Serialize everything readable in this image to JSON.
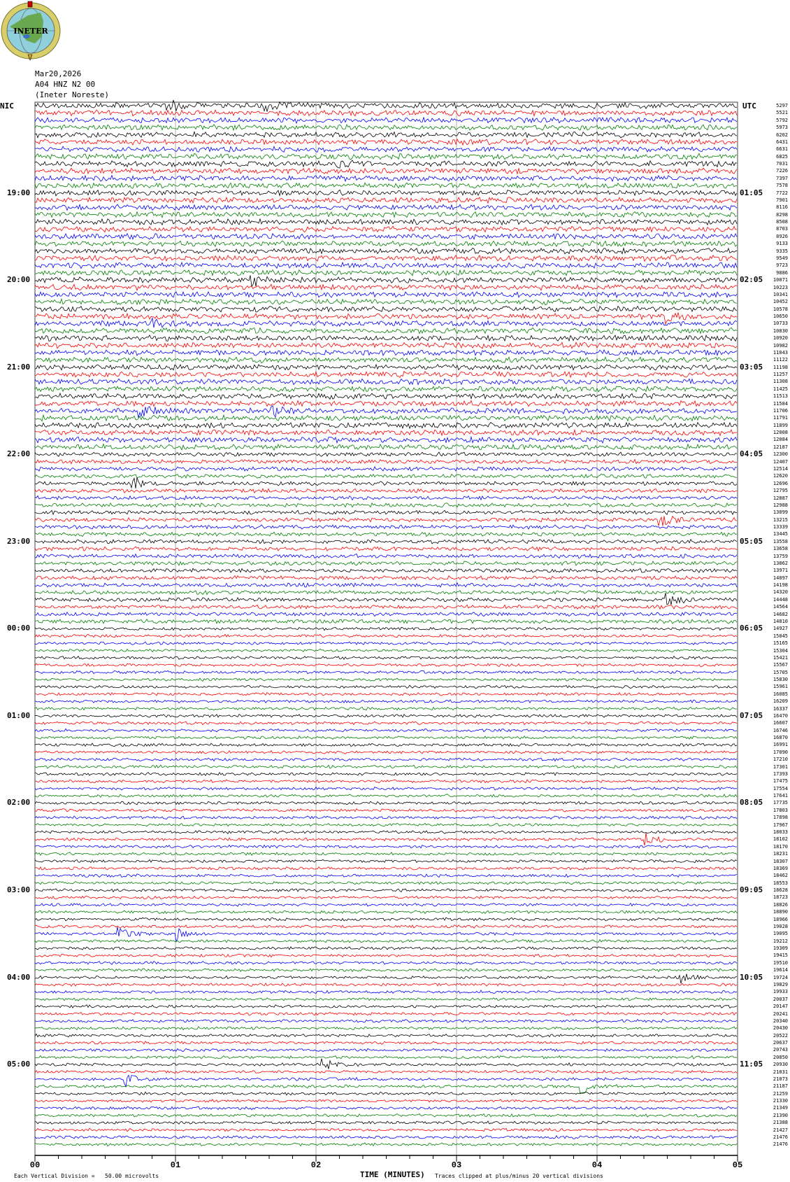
{
  "header": {
    "logo_text": "INETER",
    "date": "Mar20,2026",
    "station": "A04 HNZ N2 00",
    "network": "(Ineter Noreste)"
  },
  "left_timezone": "NIC",
  "right_timezone": "UTC",
  "chart_data": {
    "type": "line",
    "title": "",
    "xlabel": "TIME (MINUTES)",
    "xlim": [
      0,
      5
    ],
    "x_ticks": [
      "00",
      "01",
      "02",
      "03",
      "04",
      "05"
    ],
    "grid": true,
    "trace_colors": [
      "#000000",
      "#ff0000",
      "#0000ff",
      "#007f00"
    ],
    "rows_per_hour": 12,
    "left_hour_labels": [
      "19:00",
      "20:00",
      "21:00",
      "22:00",
      "23:00",
      "00:00",
      "01:00",
      "02:00",
      "03:00",
      "04:00",
      "05:00"
    ],
    "right_hour_labels": [
      "01:05",
      "02:05",
      "03:05",
      "04:05",
      "05:05",
      "06:05",
      "07:05",
      "08:05",
      "09:05",
      "10:05",
      "11:05"
    ],
    "row_values": [
      "5297",
      "5521",
      "5792",
      "5973",
      "6202",
      "6431",
      "6631",
      "6825",
      "7031",
      "7226",
      "7397",
      "7578",
      "7722",
      "7901",
      "8116",
      "8298",
      "8508",
      "8703",
      "8926",
      "9133",
      "9335",
      "9549",
      "9723",
      "9886",
      "10071",
      "10223",
      "10341",
      "10452",
      "10578",
      "10650",
      "10733",
      "10830",
      "10920",
      "10982",
      "11043",
      "11122",
      "11198",
      "11257",
      "11308",
      "11425",
      "11513",
      "11584",
      "11706",
      "11791",
      "11899",
      "12008",
      "12084",
      "12187",
      "12300",
      "12407",
      "12514",
      "12620",
      "12696",
      "12795",
      "12887",
      "12988",
      "13099",
      "13215",
      "13339",
      "13445",
      "13558",
      "13658",
      "13759",
      "13862",
      "13971",
      "14097",
      "14198",
      "14320",
      "14448",
      "14564",
      "14682",
      "14810",
      "14927",
      "15045",
      "15165",
      "15304",
      "15421",
      "15567",
      "15705",
      "15830",
      "15961",
      "16085",
      "16209",
      "16337",
      "16470",
      "16607",
      "16746",
      "16870",
      "16991",
      "17090",
      "17210",
      "17301",
      "17393",
      "17475",
      "17554",
      "17641",
      "17735",
      "17803",
      "17898",
      "17967",
      "18033",
      "18102",
      "18170",
      "18231",
      "18307",
      "18369",
      "18462",
      "18553",
      "18628",
      "18723",
      "18826",
      "18890",
      "18966",
      "19028",
      "19095",
      "19212",
      "19309",
      "19415",
      "19510",
      "19614",
      "19724",
      "19829",
      "19933",
      "20037",
      "20147",
      "20241",
      "20340",
      "20430",
      "20522",
      "20637",
      "20743",
      "20850",
      "20930",
      "21031",
      "21073",
      "21187",
      "21259",
      "21330",
      "21349",
      "21390",
      "21388",
      "21427",
      "21476",
      "21476"
    ],
    "events": [
      {
        "row": 0,
        "minute": 0.95
      },
      {
        "row": 0,
        "minute": 1.65
      },
      {
        "row": 8,
        "minute": 2.15
      },
      {
        "row": 24,
        "minute": 1.55
      },
      {
        "row": 30,
        "minute": 0.85
      },
      {
        "row": 29,
        "minute": 4.5
      },
      {
        "row": 42,
        "minute": 0.75
      },
      {
        "row": 42,
        "minute": 1.7
      },
      {
        "row": 52,
        "minute": 0.7
      },
      {
        "row": 57,
        "minute": 4.45
      },
      {
        "row": 68,
        "minute": 4.5
      },
      {
        "row": 101,
        "minute": 4.35
      },
      {
        "row": 114,
        "minute": 0.6
      },
      {
        "row": 114,
        "minute": 1.0
      },
      {
        "row": 120,
        "minute": 4.6
      },
      {
        "row": 132,
        "minute": 2.05
      },
      {
        "row": 134,
        "minute": 0.65
      },
      {
        "row": 135,
        "minute": 3.9
      }
    ]
  },
  "footer": {
    "scale": "Each Vertical Division =   50.00 microvolts",
    "clip": "Traces clipped at plus/minus 20 vertical divisions"
  }
}
